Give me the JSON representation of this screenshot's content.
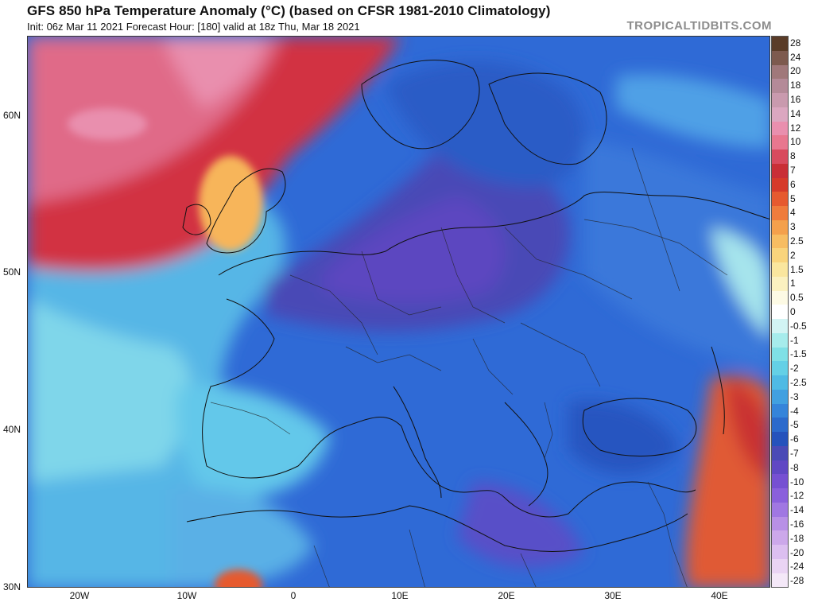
{
  "header": {
    "title": "GFS 850 hPa Temperature Anomaly (°C) (based on CFSR 1981-2010 Climatology)",
    "subtitle": "Init: 06z Mar 11 2021   Forecast Hour: [180]   valid at 18z Thu, Mar 18 2021",
    "site": "TROPICALTIDBITS.COM"
  },
  "map": {
    "lat_range": [
      30,
      65
    ],
    "lon_range": [
      -25,
      45
    ],
    "lat_ticks": [
      "60N",
      "50N",
      "40N",
      "30N"
    ],
    "lon_ticks": [
      "20W",
      "10W",
      "0",
      "10E",
      "20E",
      "30E",
      "40E"
    ],
    "regions": {
      "north_atlantic": "warm anomaly +5 to +14",
      "central_europe": "cold anomaly -7 to -10",
      "mediterranean": "cold anomaly -4 to -6",
      "middle_east": "warm anomaly +3 to +8"
    }
  },
  "colorbar": {
    "labels": [
      "28",
      "24",
      "20",
      "18",
      "16",
      "14",
      "12",
      "10",
      "8",
      "7",
      "6",
      "5",
      "4",
      "3",
      "2.5",
      "2",
      "1.5",
      "1",
      "0.5",
      "0",
      "-0.5",
      "-1",
      "-1.5",
      "-2",
      "-2.5",
      "-3",
      "-4",
      "-5",
      "-6",
      "-7",
      "-8",
      "-10",
      "-12",
      "-14",
      "-16",
      "-18",
      "-20",
      "-24",
      "-28"
    ],
    "colors": [
      "#5a3c28",
      "#7d5a4e",
      "#a0787a",
      "#b48a98",
      "#c99aae",
      "#dba7c0",
      "#e98fae",
      "#e8778f",
      "#d84b5e",
      "#c92f36",
      "#d63b2a",
      "#e65a2f",
      "#ef7c3c",
      "#f4a04c",
      "#f7bd62",
      "#f9d47c",
      "#fae69e",
      "#fbf1c0",
      "#fdfae4",
      "#ffffff",
      "#d2f4f4",
      "#a6ecec",
      "#7fe0e6",
      "#64d0e6",
      "#4fbae4",
      "#41a0e0",
      "#3584da",
      "#2c6acc",
      "#2552bc",
      "#4a4ab6",
      "#6048c4",
      "#7650d2",
      "#8a60dc",
      "#a077e2",
      "#b890e6",
      "#cca8ea",
      "#dcbff0",
      "#ead4f4",
      "#f4e8f8"
    ]
  }
}
